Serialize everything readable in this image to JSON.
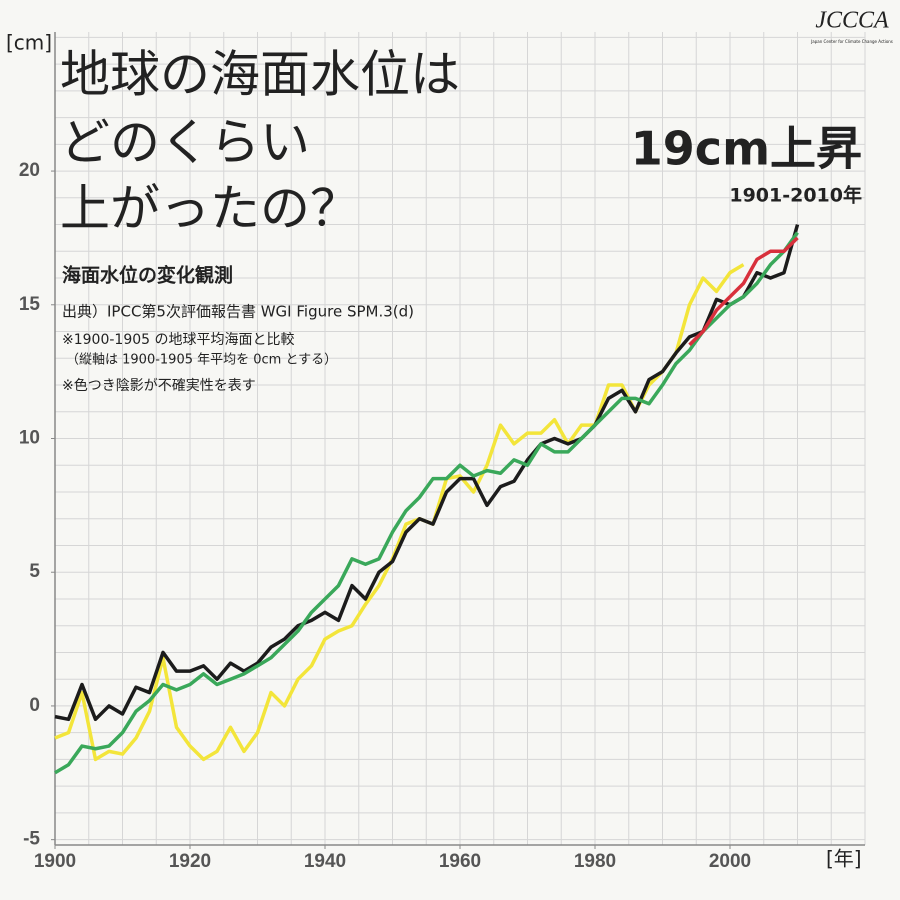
{
  "chart_data": {
    "type": "line",
    "title": [
      "地球の海面水位は",
      "どのくらい",
      "上がったの？"
    ],
    "subtitle": "海面水位の変化観測",
    "notes": [
      "出典）IPCC第5次評価報告書 WGI Figure SPM.3(d)",
      "※1900-1905 の地球平均海面と比較",
      "（縦軸は 1900-1905 年平均を 0cm とする）",
      "※色つき陰影が不確実性を表す"
    ],
    "headline": "19cm上昇",
    "headline_sub": "1901-2010年",
    "logo": "JCCCA",
    "logo_sub": "Japan Center for Climate Change Actions",
    "ylabel": "[cm]",
    "xlabel": "[年]",
    "xlim": [
      1900,
      2020
    ],
    "ylim": [
      -5.2,
      25.2
    ],
    "xticks": [
      1900,
      1920,
      1940,
      1960,
      1980,
      2000
    ],
    "yticks": [
      -5,
      0,
      5,
      10,
      15,
      20
    ],
    "xgrid": [
      1900,
      1905,
      1910,
      1915,
      1920,
      1925,
      1930,
      1935,
      1940,
      1945,
      1950,
      1955,
      1960,
      1965,
      1970,
      1975,
      1980,
      1985,
      1990,
      1995,
      2000,
      2005,
      2010,
      2015,
      2020
    ],
    "ygrid": [
      -5,
      -4,
      -3,
      -2,
      -1,
      0,
      1,
      2,
      3,
      4,
      5,
      6,
      7,
      8,
      9,
      10,
      11,
      12,
      13,
      14,
      15,
      16,
      17,
      18,
      19,
      20,
      21,
      22,
      23,
      24,
      25
    ],
    "grid": true,
    "x": [
      1900,
      1902,
      1904,
      1906,
      1908,
      1910,
      1912,
      1914,
      1916,
      1918,
      1920,
      1922,
      1924,
      1926,
      1928,
      1930,
      1932,
      1934,
      1936,
      1938,
      1940,
      1942,
      1944,
      1946,
      1948,
      1950,
      1952,
      1954,
      1956,
      1958,
      1960,
      1962,
      1964,
      1966,
      1968,
      1970,
      1972,
      1974,
      1976,
      1978,
      1980,
      1982,
      1984,
      1986,
      1988,
      1990,
      1992,
      1994,
      1996,
      1998,
      2000,
      2002,
      2004,
      2006,
      2008,
      2010
    ],
    "series": [
      {
        "color": "#f3e53a",
        "values": [
          -1.2,
          -1.0,
          0.5,
          -2.0,
          -1.7,
          -1.8,
          -1.2,
          -0.2,
          1.8,
          -0.8,
          -1.5,
          -2.0,
          -1.7,
          -0.8,
          -1.7,
          -1.0,
          0.5,
          0.0,
          1.0,
          1.5,
          2.5,
          2.8,
          3.0,
          3.8,
          4.5,
          5.5,
          6.8,
          7.0,
          6.8,
          8.5,
          8.6,
          8.0,
          9.0,
          10.5,
          9.8,
          10.2,
          10.2,
          10.7,
          9.8,
          10.5,
          10.5,
          12.0,
          12.0,
          11.0,
          12.0,
          12.5,
          13.2,
          15.0,
          16.0,
          15.5,
          16.2,
          16.5,
          null,
          null,
          null,
          null
        ]
      },
      {
        "color": "#1c1c1c",
        "values": [
          -0.4,
          -0.5,
          0.8,
          -0.5,
          0.0,
          -0.3,
          0.7,
          0.5,
          2.0,
          1.3,
          1.3,
          1.5,
          1.0,
          1.6,
          1.3,
          1.6,
          2.2,
          2.5,
          3.0,
          3.2,
          3.5,
          3.2,
          4.5,
          4.0,
          5.0,
          5.4,
          6.5,
          7.0,
          6.8,
          8.0,
          8.5,
          8.5,
          7.5,
          8.2,
          8.4,
          9.2,
          9.8,
          10.0,
          9.8,
          10.0,
          10.5,
          11.5,
          11.8,
          11.0,
          12.2,
          12.5,
          13.2,
          13.8,
          14.0,
          15.2,
          15.0,
          15.3,
          16.2,
          16.0,
          16.2,
          18.0
        ]
      },
      {
        "color": "#3aa85a",
        "values": [
          -2.5,
          -2.2,
          -1.5,
          -1.6,
          -1.5,
          -1.0,
          -0.2,
          0.2,
          0.8,
          0.6,
          0.8,
          1.2,
          0.8,
          1.0,
          1.2,
          1.5,
          1.8,
          2.3,
          2.8,
          3.5,
          4.0,
          4.5,
          5.5,
          5.3,
          5.5,
          6.5,
          7.3,
          7.8,
          8.5,
          8.5,
          9.0,
          8.6,
          8.8,
          8.7,
          9.2,
          9.0,
          9.8,
          9.5,
          9.5,
          10.0,
          10.5,
          11.0,
          11.5,
          11.5,
          11.3,
          12.0,
          12.8,
          13.3,
          14.0,
          14.5,
          15.0,
          15.3,
          15.8,
          16.5,
          17.0,
          17.7
        ]
      },
      {
        "color": "#d8303c",
        "values": [
          null,
          null,
          null,
          null,
          null,
          null,
          null,
          null,
          null,
          null,
          null,
          null,
          null,
          null,
          null,
          null,
          null,
          null,
          null,
          null,
          null,
          null,
          null,
          null,
          null,
          null,
          null,
          null,
          null,
          null,
          null,
          null,
          null,
          null,
          null,
          null,
          null,
          null,
          null,
          null,
          null,
          null,
          null,
          null,
          null,
          null,
          null,
          13.5,
          14.0,
          14.8,
          15.3,
          15.8,
          16.7,
          17.0,
          17.0,
          17.5
        ]
      }
    ]
  }
}
